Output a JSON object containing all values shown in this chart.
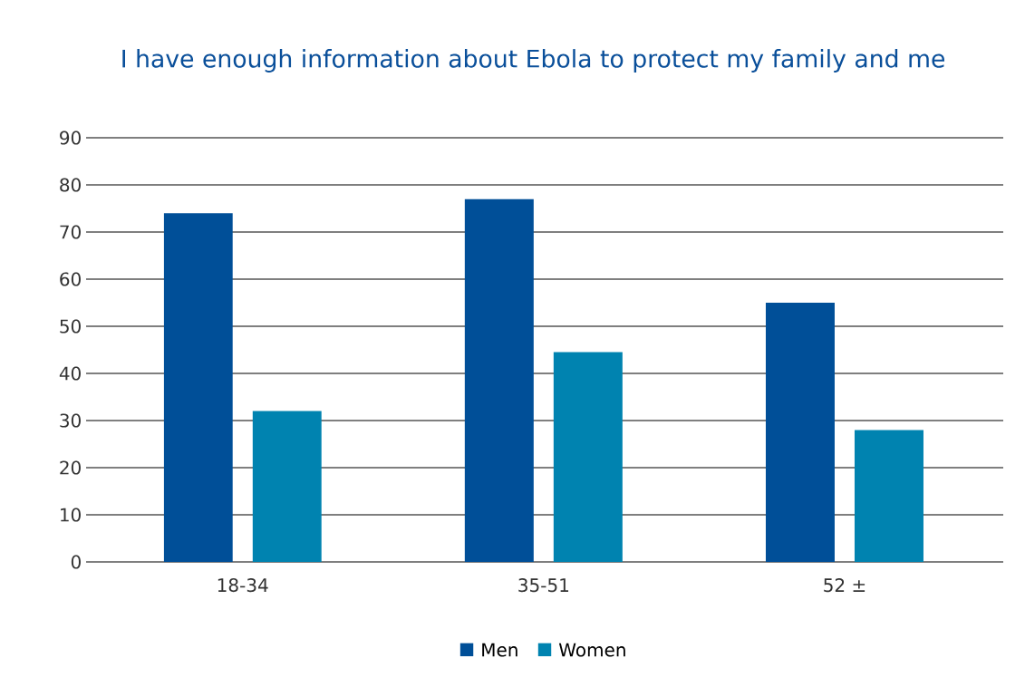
{
  "chart_data": {
    "type": "bar",
    "title": "I have enough information about Ebola to protect my family and me",
    "categories": [
      "18-34",
      "35-51",
      "52 ±"
    ],
    "series": [
      {
        "name": "Men",
        "color": "#004f98",
        "values": [
          74,
          77,
          55
        ]
      },
      {
        "name": "Women",
        "color": "#0083b0",
        "values": [
          32,
          44.5,
          28
        ]
      }
    ],
    "ylim": [
      0,
      90
    ],
    "yticks": [
      0,
      10,
      20,
      30,
      40,
      50,
      60,
      70,
      80,
      90
    ],
    "grid": "y",
    "legend": "bottom"
  }
}
